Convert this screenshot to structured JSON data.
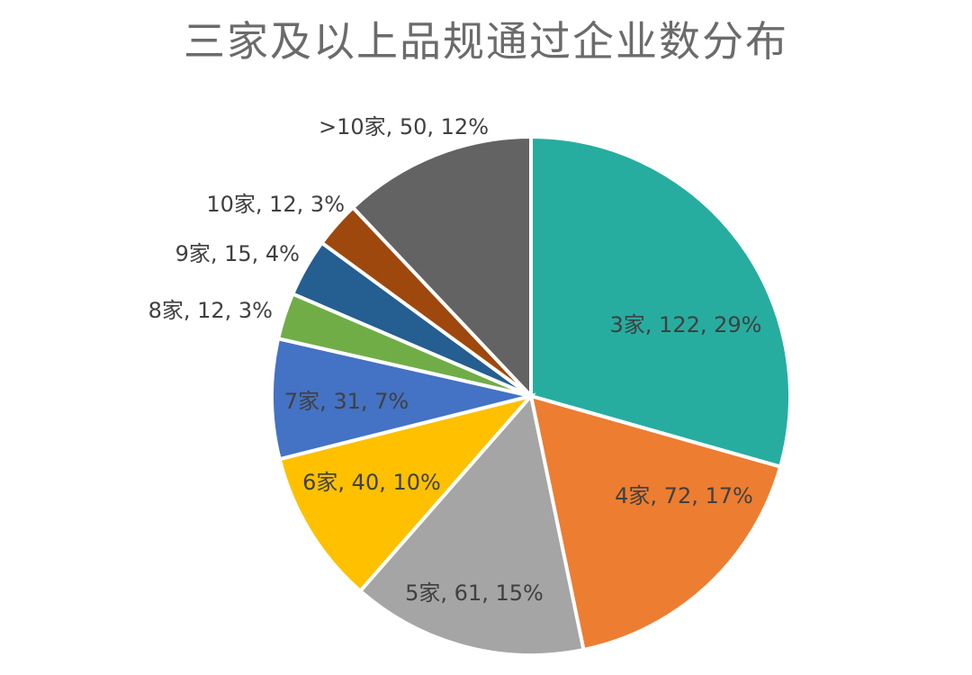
{
  "chart_data": {
    "type": "pie",
    "title": "三家及以上品规通过企业数分布",
    "slices": [
      {
        "name": "3家",
        "value": 122,
        "percent": "29%",
        "label": "3家, 122, 29%",
        "color": "#26ADA0"
      },
      {
        "name": "4家",
        "value": 72,
        "percent": "17%",
        "label": "4家, 72, 17%",
        "color": "#ED7D31"
      },
      {
        "name": "5家",
        "value": 61,
        "percent": "15%",
        "label": "5家, 61, 15%",
        "color": "#A5A5A5"
      },
      {
        "name": "6家",
        "value": 40,
        "percent": "10%",
        "label": "6家, 40, 10%",
        "color": "#FFC000"
      },
      {
        "name": "7家",
        "value": 31,
        "percent": "7%",
        "label": "7家, 31, 7%",
        "color": "#4472C4"
      },
      {
        "name": "8家",
        "value": 12,
        "percent": "3%",
        "label": "8家, 12, 3%",
        "color": "#70AD47"
      },
      {
        "name": "9家",
        "value": 15,
        "percent": "4%",
        "label": "9家, 15, 4%",
        "color": "#255E91"
      },
      {
        "name": "10家",
        "value": 12,
        "percent": "3%",
        "label": "10家, 12, 3%",
        "color": "#9E480E"
      },
      {
        "name": ">10家",
        "value": 50,
        "percent": "12%",
        "label": ">10家, 50, 12%",
        "color": "#636363"
      }
    ],
    "start_angle_deg": 0,
    "direction": "clockwise",
    "legend": "none"
  }
}
